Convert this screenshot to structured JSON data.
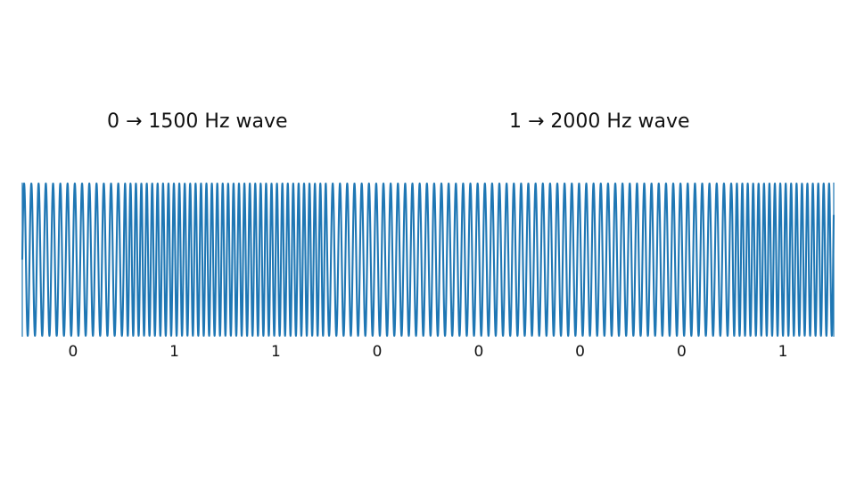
{
  "legend": {
    "zero_label": "0 → 1500 Hz wave",
    "one_label": "1 → 2000 Hz wave"
  },
  "bits": [
    "0",
    "1",
    "1",
    "0",
    "0",
    "0",
    "0",
    "1"
  ],
  "frequencies_hz": {
    "0": 1500,
    "1": 2000
  },
  "colors": {
    "wave": "#1f77b4",
    "text": "#111111",
    "background": "#ffffff"
  }
}
